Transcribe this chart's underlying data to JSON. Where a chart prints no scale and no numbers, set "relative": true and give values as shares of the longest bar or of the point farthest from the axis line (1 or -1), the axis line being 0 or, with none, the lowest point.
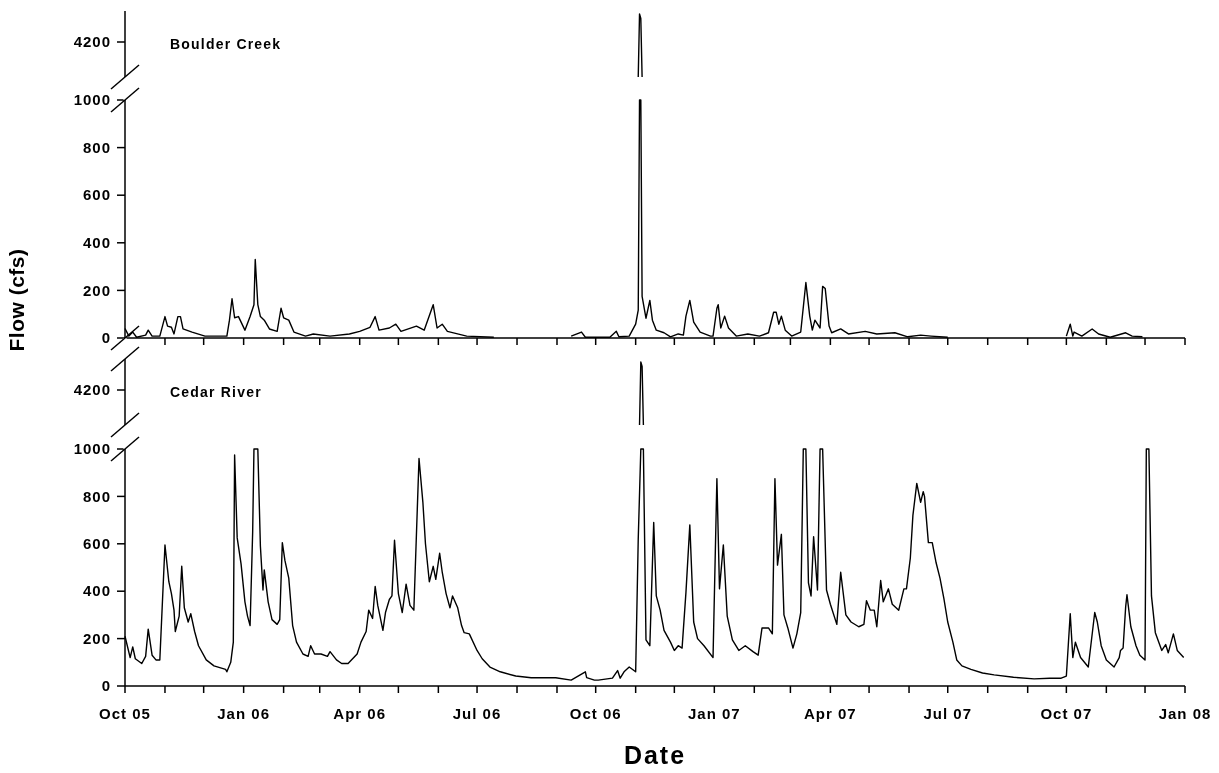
{
  "chart_data": [
    {
      "type": "line",
      "title": "Boulder Creek",
      "annotations": [
        "4200"
      ],
      "relative": true,
      "xlim": [
        "2005-10-01",
        "2008-01-01"
      ],
      "tick_labels": "y",
      "series": [
        {
          "color": "#000000",
          "x": [
            "2006-11-03",
            "2006-11-04",
            "2006-11-05",
            "2006-11-06"
          ],
          "values": [
            0,
            1,
            0.93,
            0
          ]
        }
      ]
    },
    {
      "type": "line",
      "ylabel": "Flow (cfs)",
      "xlim": [
        "2005-10-01",
        "2008-01-01"
      ],
      "ylim": [
        0,
        1000
      ],
      "yticks": [
        0,
        200,
        400,
        600,
        800,
        1000
      ],
      "tick_labels": "y",
      "xticks": [
        {
          "value": "2005-10-01",
          "label": null
        },
        {
          "value": "2005-11-01",
          "label": null
        },
        {
          "value": "2005-12-01",
          "label": null
        },
        {
          "value": "2006-01-01",
          "label": null
        },
        {
          "value": "2006-02-01",
          "label": null
        },
        {
          "value": "2006-03-01",
          "label": null
        },
        {
          "value": "2006-04-01",
          "label": null
        },
        {
          "value": "2006-05-01",
          "label": null
        },
        {
          "value": "2006-06-01",
          "label": null
        },
        {
          "value": "2006-07-01",
          "label": null
        },
        {
          "value": "2006-08-01",
          "label": null
        },
        {
          "value": "2006-09-01",
          "label": null
        },
        {
          "value": "2006-10-01",
          "label": null
        },
        {
          "value": "2006-11-01",
          "label": null
        },
        {
          "value": "2006-12-01",
          "label": null
        },
        {
          "value": "2007-01-01",
          "label": null
        },
        {
          "value": "2007-02-01",
          "label": null
        },
        {
          "value": "2007-03-01",
          "label": null
        },
        {
          "value": "2007-04-01",
          "label": null
        },
        {
          "value": "2007-05-01",
          "label": null
        },
        {
          "value": "2007-06-01",
          "label": null
        },
        {
          "value": "2007-07-01",
          "label": null
        },
        {
          "value": "2007-08-01",
          "label": null
        },
        {
          "value": "2007-09-01",
          "label": null
        },
        {
          "value": "2007-10-01",
          "label": null
        },
        {
          "value": "2007-11-01",
          "label": null
        },
        {
          "value": "2007-12-01",
          "label": null
        },
        {
          "value": "2008-01-01",
          "label": null
        }
      ],
      "series": [
        {
          "color": "#000000",
          "x": [
            "2005-10-01",
            "2005-10-04",
            "2005-10-07",
            "2005-10-10",
            "2005-10-17",
            "2005-10-19",
            "2005-10-22",
            "2005-10-28",
            "2005-11-01",
            "2005-11-03",
            "2005-11-06",
            "2005-11-08",
            "2005-11-11",
            "2005-11-13",
            "2005-11-15",
            "2005-11-22",
            "2005-12-02",
            "2005-12-19",
            "2005-12-21",
            "2005-12-23",
            "2005-12-25",
            "2005-12-28",
            "2006-01-02",
            "2006-01-06",
            "2006-01-09",
            "2006-01-10",
            "2006-01-12",
            "2006-01-14",
            "2006-01-17",
            "2006-01-21",
            "2006-01-27",
            "2006-01-30",
            "2006-02-01",
            "2006-02-05",
            "2006-02-09",
            "2006-02-18",
            "2006-02-24",
            "2006-03-09",
            "2006-03-24",
            "2006-04-01",
            "2006-04-09",
            "2006-04-13",
            "2006-04-16",
            "2006-04-24",
            "2006-04-29",
            "2006-05-03",
            "2006-05-15",
            "2006-05-21",
            "2006-05-28",
            "2006-05-31",
            "2006-06-04",
            "2006-06-08",
            "2006-06-23",
            "2006-07-14",
            "2006-08-01",
            "2006-09-12",
            "2006-09-20",
            "2006-09-23",
            "2006-10-12",
            "2006-10-17",
            "2006-10-19",
            "2006-10-27",
            "2006-11-01",
            "2006-11-03",
            "2006-11-04",
            "2006-11-05",
            "2006-11-06",
            "2006-11-09",
            "2006-11-12",
            "2006-11-14",
            "2006-11-17",
            "2006-11-23",
            "2006-11-28",
            "2006-12-04",
            "2006-12-08",
            "2006-12-10",
            "2006-12-13",
            "2006-12-16",
            "2006-12-21",
            "2006-12-29",
            "2006-12-31",
            "2007-01-03",
            "2007-01-04",
            "2007-01-06",
            "2007-01-09",
            "2007-01-12",
            "2007-01-18",
            "2007-01-27",
            "2007-02-05",
            "2007-02-12",
            "2007-02-16",
            "2007-02-18",
            "2007-02-20",
            "2007-02-22",
            "2007-02-25",
            "2007-03-02",
            "2007-03-09",
            "2007-03-13",
            "2007-03-16",
            "2007-03-18",
            "2007-03-20",
            "2007-03-24",
            "2007-03-26",
            "2007-03-28",
            "2007-03-31",
            "2007-04-02",
            "2007-04-09",
            "2007-04-15",
            "2007-04-28",
            "2007-05-07",
            "2007-05-21",
            "2007-05-31",
            "2007-06-10",
            "2007-06-18",
            "2007-07-01",
            "2007-08-01",
            "2007-10-01",
            "2007-10-04",
            "2007-10-06",
            "2007-10-07",
            "2007-10-13",
            "2007-10-21",
            "2007-10-26",
            "2007-11-04",
            "2007-11-16",
            "2007-11-21",
            "2007-11-29"
          ],
          "values": [
            40,
            8,
            25,
            3,
            12,
            33,
            8,
            8,
            90,
            50,
            45,
            17,
            90,
            90,
            38,
            25,
            8,
            8,
            75,
            165,
            85,
            90,
            33,
            90,
            140,
            330,
            140,
            90,
            75,
            38,
            28,
            125,
            85,
            75,
            25,
            8,
            17,
            8,
            17,
            28,
            45,
            90,
            33,
            42,
            58,
            28,
            50,
            33,
            140,
            42,
            58,
            28,
            8,
            3,
            null,
            8,
            25,
            3,
            3,
            28,
            5,
            8,
            58,
            117,
            1000,
            1000,
            175,
            83,
            158,
            75,
            33,
            22,
            5,
            17,
            12,
            92,
            158,
            67,
            25,
            8,
            8,
            125,
            140,
            42,
            92,
            42,
            8,
            17,
            8,
            22,
            108,
            108,
            58,
            92,
            33,
            8,
            25,
            233,
            92,
            33,
            75,
            42,
            217,
            208,
            50,
            22,
            38,
            17,
            28,
            17,
            22,
            5,
            12,
            8,
            3,
            null,
            8,
            58,
            8,
            25,
            8,
            38,
            17,
            3,
            22,
            8,
            5
          ]
        }
      ]
    },
    {
      "type": "line",
      "title": "Cedar River",
      "annotations": [
        "4200"
      ],
      "relative": true,
      "xlim": [
        "2005-10-01",
        "2008-01-01"
      ],
      "tick_labels": "y",
      "series": [
        {
          "color": "#000000",
          "x": [
            "2006-11-04",
            "2006-11-05",
            "2006-11-06",
            "2006-11-07"
          ],
          "values": [
            0,
            1,
            0.93,
            0
          ]
        }
      ]
    },
    {
      "type": "line",
      "xlabel": "Date",
      "xlim": [
        "2005-10-01",
        "2008-01-01"
      ],
      "ylim": [
        0,
        1000
      ],
      "yticks": [
        0,
        200,
        400,
        600,
        800,
        1000
      ],
      "xticks": [
        {
          "value": "2005-10-01",
          "label": "Oct 05"
        },
        {
          "value": "2005-11-01",
          "label": null
        },
        {
          "value": "2005-12-01",
          "label": null
        },
        {
          "value": "2006-01-01",
          "label": "Jan 06"
        },
        {
          "value": "2006-02-01",
          "label": null
        },
        {
          "value": "2006-03-01",
          "label": null
        },
        {
          "value": "2006-04-01",
          "label": "Apr 06"
        },
        {
          "value": "2006-05-01",
          "label": null
        },
        {
          "value": "2006-06-01",
          "label": null
        },
        {
          "value": "2006-07-01",
          "label": "Jul 06"
        },
        {
          "value": "2006-08-01",
          "label": null
        },
        {
          "value": "2006-09-01",
          "label": null
        },
        {
          "value": "2006-10-01",
          "label": "Oct 06"
        },
        {
          "value": "2006-11-01",
          "label": null
        },
        {
          "value": "2006-12-01",
          "label": null
        },
        {
          "value": "2007-01-01",
          "label": "Jan 07"
        },
        {
          "value": "2007-02-01",
          "label": null
        },
        {
          "value": "2007-03-01",
          "label": null
        },
        {
          "value": "2007-04-01",
          "label": "Apr 07"
        },
        {
          "value": "2007-05-01",
          "label": null
        },
        {
          "value": "2007-06-01",
          "label": null
        },
        {
          "value": "2007-07-01",
          "label": "Jul 07"
        },
        {
          "value": "2007-08-01",
          "label": null
        },
        {
          "value": "2007-09-01",
          "label": null
        },
        {
          "value": "2007-10-01",
          "label": "Oct 07"
        },
        {
          "value": "2007-11-01",
          "label": null
        },
        {
          "value": "2007-12-01",
          "label": null
        },
        {
          "value": "2008-01-01",
          "label": "Jan 08"
        }
      ],
      "series": [
        {
          "color": "#000000",
          "x": [
            "2005-10-01",
            "2005-10-05",
            "2005-10-07",
            "2005-10-09",
            "2005-10-14",
            "2005-10-17",
            "2005-10-19",
            "2005-10-22",
            "2005-10-25",
            "2005-10-28",
            "2005-11-01",
            "2005-11-04",
            "2005-11-06",
            "2005-11-08",
            "2005-11-09",
            "2005-11-12",
            "2005-11-14",
            "2005-11-16",
            "2005-11-19",
            "2005-11-21",
            "2005-11-24",
            "2005-11-27",
            "2005-12-03",
            "2005-12-09",
            "2005-12-18",
            "2005-12-19",
            "2005-12-22",
            "2005-12-24",
            "2005-12-25",
            "2005-12-27",
            "2005-12-30",
            "2006-01-02",
            "2006-01-04",
            "2006-01-06",
            "2006-01-08",
            "2006-01-09",
            "2006-01-12",
            "2006-01-14",
            "2006-01-16",
            "2006-01-17",
            "2006-01-20",
            "2006-01-23",
            "2006-01-27",
            "2006-01-29",
            "2006-01-31",
            "2006-02-02",
            "2006-02-05",
            "2006-02-08",
            "2006-02-11",
            "2006-02-16",
            "2006-02-20",
            "2006-02-22",
            "2006-02-25",
            "2006-03-02",
            "2006-03-07",
            "2006-03-09",
            "2006-03-14",
            "2006-03-18",
            "2006-03-23",
            "2006-03-30",
            "2006-04-02",
            "2006-04-06",
            "2006-04-08",
            "2006-04-11",
            "2006-04-13",
            "2006-04-15",
            "2006-04-19",
            "2006-04-21",
            "2006-04-24",
            "2006-04-26",
            "2006-04-28",
            "2006-05-01",
            "2006-05-04",
            "2006-05-07",
            "2006-05-10",
            "2006-05-13",
            "2006-05-17",
            "2006-05-20",
            "2006-05-22",
            "2006-05-25",
            "2006-05-28",
            "2006-05-30",
            "2006-06-02",
            "2006-06-04",
            "2006-06-07",
            "2006-06-10",
            "2006-06-12",
            "2006-06-16",
            "2006-06-19",
            "2006-06-21",
            "2006-06-25",
            "2006-07-01",
            "2006-07-05",
            "2006-07-11",
            "2006-07-19",
            "2006-07-31",
            "2006-08-12",
            "2006-08-31",
            "2006-09-12",
            "2006-09-23",
            "2006-09-24",
            "2006-09-30",
            "2006-10-03",
            "2006-10-14",
            "2006-10-18",
            "2006-10-20",
            "2006-10-23",
            "2006-10-27",
            "2006-11-01",
            "2006-11-03",
            "2006-11-05",
            "2006-11-07",
            "2006-11-09",
            "2006-11-12",
            "2006-11-15",
            "2006-11-17",
            "2006-11-20",
            "2006-11-23",
            "2006-11-28",
            "2006-12-01",
            "2006-12-04",
            "2006-12-07",
            "2006-12-10",
            "2006-12-13",
            "2006-12-16",
            "2006-12-19",
            "2006-12-24",
            "2006-12-31",
            "2007-01-03",
            "2007-01-05",
            "2007-01-08",
            "2007-01-11",
            "2007-01-15",
            "2007-01-20",
            "2007-01-25",
            "2007-01-31",
            "2007-02-04",
            "2007-02-07",
            "2007-02-12",
            "2007-02-15",
            "2007-02-17",
            "2007-02-19",
            "2007-02-22",
            "2007-02-24",
            "2007-02-27",
            "2007-03-03",
            "2007-03-06",
            "2007-03-09",
            "2007-03-11",
            "2007-03-13",
            "2007-03-15",
            "2007-03-17",
            "2007-03-19",
            "2007-03-22",
            "2007-03-24",
            "2007-03-26",
            "2007-03-29",
            "2007-04-01",
            "2007-04-06",
            "2007-04-09",
            "2007-04-13",
            "2007-04-17",
            "2007-04-23",
            "2007-04-27",
            "2007-04-29",
            "2007-05-02",
            "2007-05-05",
            "2007-05-07",
            "2007-05-10",
            "2007-05-12",
            "2007-05-16",
            "2007-05-19",
            "2007-05-24",
            "2007-05-28",
            "2007-05-30",
            "2007-06-02",
            "2007-06-04",
            "2007-06-07",
            "2007-06-10",
            "2007-06-12",
            "2007-06-13",
            "2007-06-16",
            "2007-06-19",
            "2007-06-22",
            "2007-06-25",
            "2007-06-28",
            "2007-07-01",
            "2007-07-05",
            "2007-07-08",
            "2007-07-12",
            "2007-07-19",
            "2007-07-28",
            "2007-08-06",
            "2007-08-21",
            "2007-09-06",
            "2007-09-18",
            "2007-09-27",
            "2007-10-01",
            "2007-10-04",
            "2007-10-06",
            "2007-10-08",
            "2007-10-12",
            "2007-10-18",
            "2007-10-23",
            "2007-10-25",
            "2007-10-28",
            "2007-11-01",
            "2007-11-07",
            "2007-11-11",
            "2007-11-12",
            "2007-11-14",
            "2007-11-16",
            "2007-11-17",
            "2007-11-20",
            "2007-11-24",
            "2007-11-27",
            "2007-12-01",
            "2007-12-02",
            "2007-12-04",
            "2007-12-06",
            "2007-12-09",
            "2007-12-14",
            "2007-12-17",
            "2007-12-19",
            "2007-12-23",
            "2007-12-26",
            "2007-12-31"
          ],
          "values": [
            210,
            120,
            165,
            115,
            95,
            125,
            240,
            130,
            110,
            110,
            595,
            440,
            390,
            320,
            230,
            295,
            505,
            330,
            270,
            305,
            230,
            170,
            110,
            85,
            70,
            60,
            100,
            185,
            975,
            625,
            515,
            355,
            295,
            255,
            650,
            1000,
            1000,
            590,
            405,
            490,
            355,
            280,
            260,
            280,
            605,
            530,
            455,
            255,
            185,
            135,
            125,
            170,
            135,
            135,
            125,
            145,
            110,
            95,
            95,
            135,
            185,
            230,
            320,
            285,
            420,
            340,
            235,
            310,
            365,
            380,
            615,
            390,
            310,
            430,
            340,
            320,
            960,
            775,
            600,
            440,
            505,
            450,
            560,
            480,
            390,
            330,
            380,
            330,
            255,
            225,
            220,
            150,
            115,
            80,
            60,
            42,
            35,
            35,
            25,
            60,
            35,
            25,
            25,
            33,
            65,
            33,
            60,
            80,
            60,
            620,
            1000,
            1000,
            195,
            170,
            690,
            380,
            320,
            235,
            185,
            150,
            170,
            160,
            395,
            680,
            270,
            200,
            170,
            120,
            875,
            410,
            595,
            295,
            195,
            150,
            170,
            145,
            130,
            245,
            245,
            220,
            875,
            510,
            640,
            300,
            245,
            160,
            220,
            310,
            1000,
            1000,
            435,
            380,
            630,
            405,
            1000,
            1000,
            405,
            345,
            260,
            480,
            300,
            270,
            250,
            260,
            360,
            320,
            320,
            250,
            445,
            355,
            410,
            345,
            320,
            410,
            410,
            540,
            720,
            855,
            775,
            820,
            800,
            605,
            605,
            520,
            455,
            370,
            270,
            185,
            110,
            85,
            70,
            55,
            47,
            37,
            30,
            33,
            33,
            42,
            305,
            120,
            185,
            120,
            80,
            310,
            270,
            170,
            110,
            80,
            120,
            150,
            160,
            335,
            385,
            250,
            170,
            130,
            110,
            1000,
            1000,
            380,
            225,
            150,
            175,
            140,
            220,
            150,
            120
          ]
        }
      ]
    }
  ]
}
